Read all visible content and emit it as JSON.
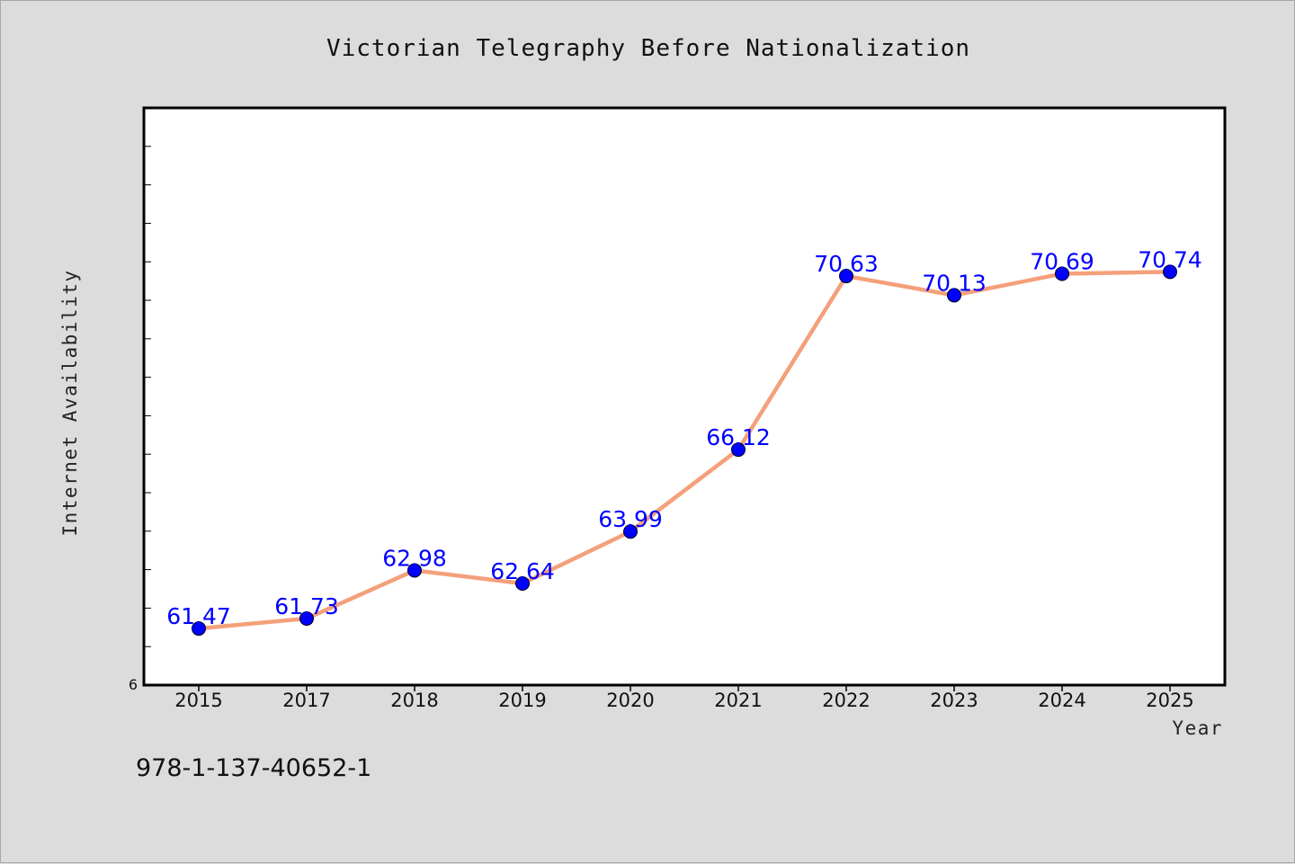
{
  "chart_data": {
    "type": "line",
    "title": "Victorian Telegraphy Before Nationalization",
    "xlabel": "Year",
    "ylabel": "Internet Availability",
    "categories": [
      "2015",
      "2017",
      "2018",
      "2019",
      "2020",
      "2021",
      "2022",
      "2023",
      "2024",
      "2025"
    ],
    "series": [
      {
        "values": [
          61.47,
          61.73,
          62.98,
          62.64,
          63.99,
          66.12,
          70.63,
          70.13,
          70.69,
          70.74
        ],
        "labels": [
          "61.47",
          "61.73",
          "62.98",
          "62.64",
          "63.99",
          "66.12",
          "70.63",
          "70.13",
          "70.69",
          "70.74"
        ]
      }
    ],
    "ytick_labels": [
      "6"
    ],
    "ylim": [
      60,
      75
    ],
    "grid": false,
    "line_color": "#f4a07a",
    "marker_color": "#0000ff",
    "data_label_color": "#0000ff"
  },
  "footer": {
    "isbn": "978-1-137-40652-1"
  }
}
